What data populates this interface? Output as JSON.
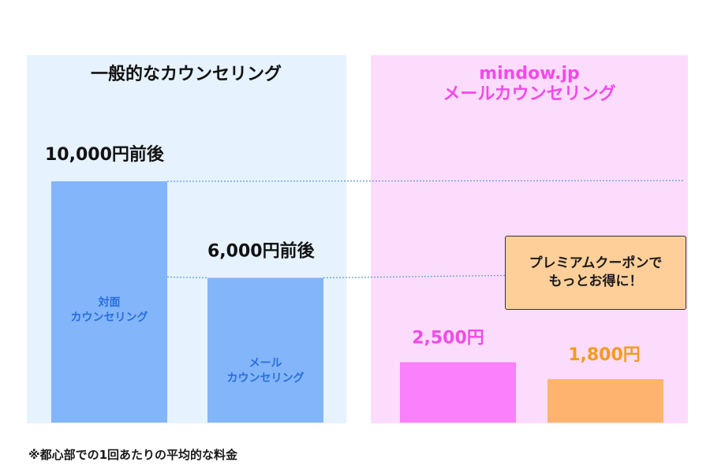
{
  "colors": {
    "left_panel_bg": "#e6f2fe",
    "right_panel_bg": "#fcdcfd",
    "blue_bar": "#82b5f9",
    "blue_label": "#2a6edb",
    "pink_bar": "#fb80fc",
    "pink_text": "#f24ae9",
    "orange_bar": "#feb46e",
    "orange_text": "#f59a1f",
    "coupon_bg": "#ffcf99",
    "dotted_line": "#5a9bd6"
  },
  "chart_data": [
    {
      "type": "bar",
      "title": "一般的なカウンセリング",
      "unit": "円",
      "categories": [
        "対面\nカウンセリング",
        "メール\nカウンセリング"
      ],
      "values": [
        10000,
        6000
      ],
      "value_labels": [
        "10,000円前後",
        "6,000円前後"
      ]
    },
    {
      "type": "bar",
      "title": "mindow.jp\nメールカウンセリング",
      "unit": "円",
      "categories": [
        "",
        ""
      ],
      "values": [
        2500,
        1800
      ],
      "value_labels": [
        "2,500円",
        "1,800円"
      ]
    }
  ],
  "coupon": {
    "line1": "プレミアムクーポンで",
    "line2": "もっとお得に！"
  },
  "footnote": "※都心部での1回あたりの平均的な料金"
}
